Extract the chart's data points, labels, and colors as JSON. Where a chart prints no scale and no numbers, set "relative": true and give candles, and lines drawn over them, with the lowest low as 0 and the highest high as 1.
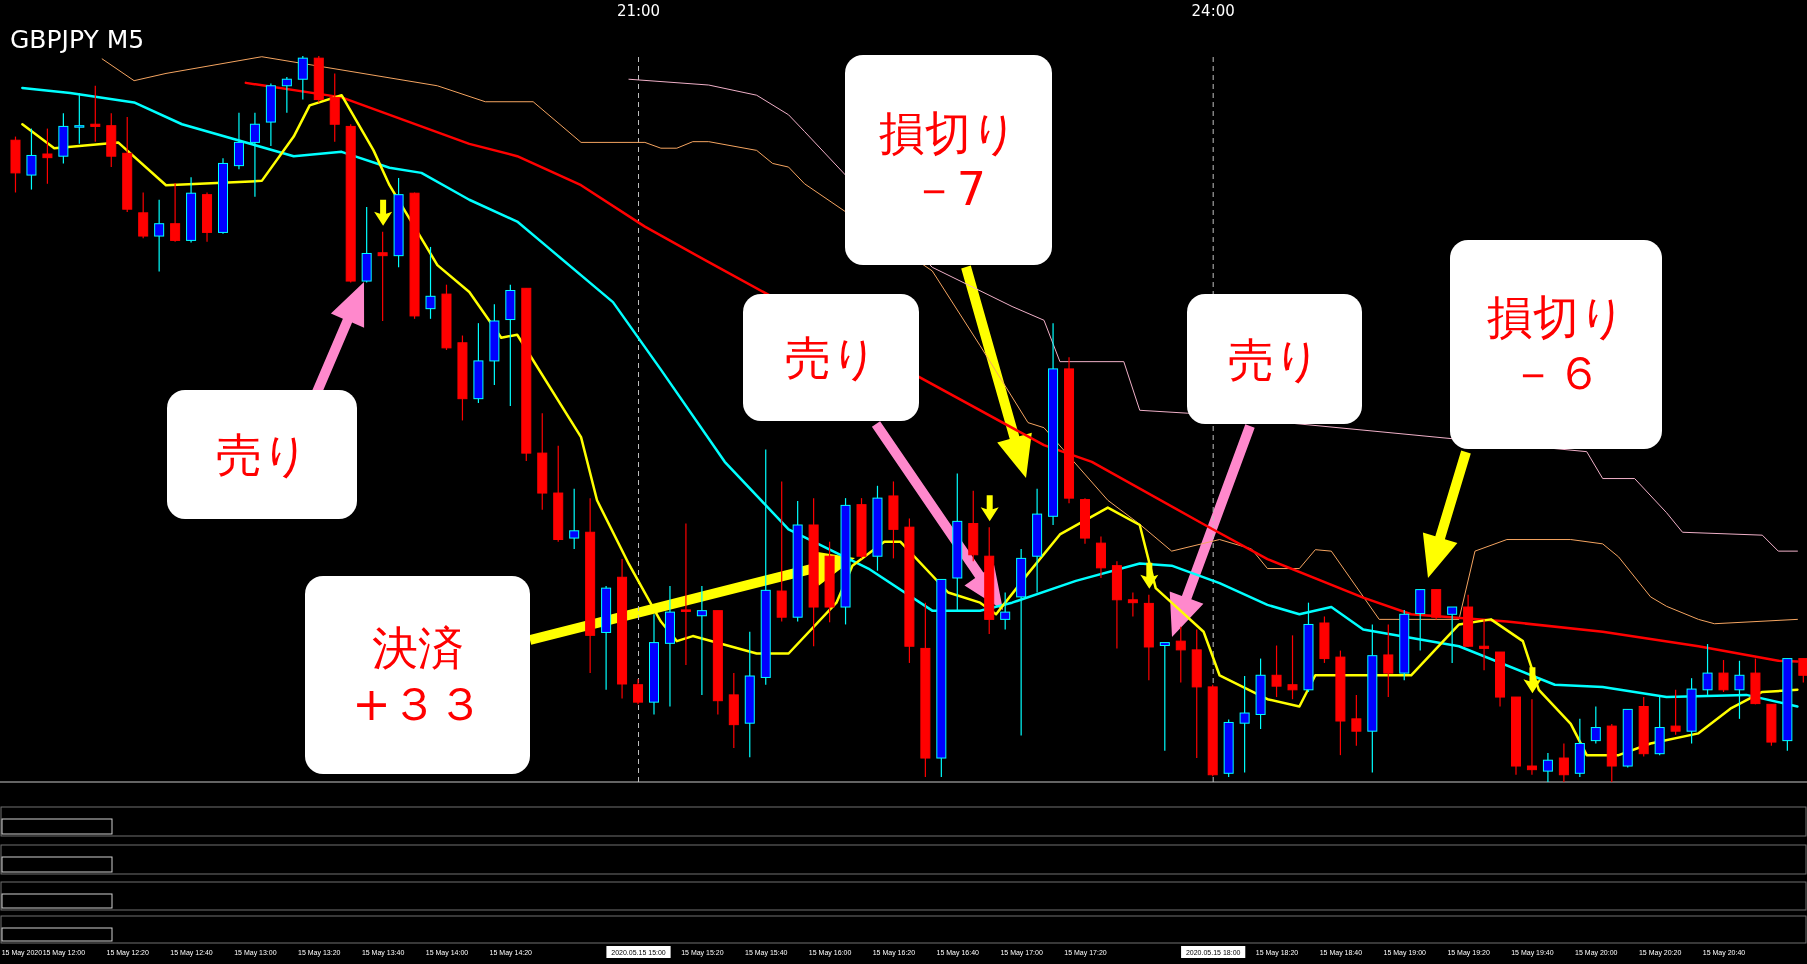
{
  "chart_data": {
    "type": "candlestick",
    "title": "GBPJPY M5",
    "relative": true,
    "marker": "none",
    "x": [
      "2020-05-15T11:45",
      "2020-05-15T11:50",
      "2020-05-15T11:55",
      "2020-05-15T12:00",
      "2020-05-15T12:05",
      "2020-05-15T12:10",
      "2020-05-15T12:15",
      "2020-05-15T12:20",
      "2020-05-15T12:25",
      "2020-05-15T12:30",
      "2020-05-15T12:35",
      "2020-05-15T12:40",
      "2020-05-15T12:45",
      "2020-05-15T12:50",
      "2020-05-15T12:55",
      "2020-05-15T13:00",
      "2020-05-15T13:05",
      "2020-05-15T13:10",
      "2020-05-15T13:15",
      "2020-05-15T13:20",
      "2020-05-15T13:25",
      "2020-05-15T13:30",
      "2020-05-15T13:35",
      "2020-05-15T13:40",
      "2020-05-15T13:45",
      "2020-05-15T13:50",
      "2020-05-15T13:55",
      "2020-05-15T14:00",
      "2020-05-15T14:05",
      "2020-05-15T14:10",
      "2020-05-15T14:15",
      "2020-05-15T14:20",
      "2020-05-15T14:25",
      "2020-05-15T14:30",
      "2020-05-15T14:35",
      "2020-05-15T14:40",
      "2020-05-15T14:45",
      "2020-05-15T14:50",
      "2020-05-15T14:55",
      "2020-05-15T15:00",
      "2020-05-15T15:05",
      "2020-05-15T15:10",
      "2020-05-15T15:15",
      "2020-05-15T15:20",
      "2020-05-15T15:25",
      "2020-05-15T15:30",
      "2020-05-15T15:35",
      "2020-05-15T15:40",
      "2020-05-15T15:45",
      "2020-05-15T15:50",
      "2020-05-15T15:55",
      "2020-05-15T16:00",
      "2020-05-15T16:05",
      "2020-05-15T16:10",
      "2020-05-15T16:15",
      "2020-05-15T16:20",
      "2020-05-15T16:25",
      "2020-05-15T16:30",
      "2020-05-15T16:35",
      "2020-05-15T16:40",
      "2020-05-15T16:45",
      "2020-05-15T16:50",
      "2020-05-15T16:55",
      "2020-05-15T17:00",
      "2020-05-15T17:05",
      "2020-05-15T17:10",
      "2020-05-15T17:15",
      "2020-05-15T17:20",
      "2020-05-15T17:25",
      "2020-05-15T17:30",
      "2020-05-15T17:35",
      "2020-05-15T17:40",
      "2020-05-15T17:45",
      "2020-05-15T17:50",
      "2020-05-15T17:55",
      "2020-05-15T18:00",
      "2020-05-15T18:05",
      "2020-05-15T18:10",
      "2020-05-15T18:15",
      "2020-05-15T18:20",
      "2020-05-15T18:25",
      "2020-05-15T18:30",
      "2020-05-15T18:35",
      "2020-05-15T18:40",
      "2020-05-15T18:45",
      "2020-05-15T18:50",
      "2020-05-15T18:55",
      "2020-05-15T19:00",
      "2020-05-15T19:05",
      "2020-05-15T19:10",
      "2020-05-15T19:15",
      "2020-05-15T19:20",
      "2020-05-15T19:25",
      "2020-05-15T19:30",
      "2020-05-15T19:35",
      "2020-05-15T19:40",
      "2020-05-15T19:45",
      "2020-05-15T19:50",
      "2020-05-15T19:55",
      "2020-05-15T20:00",
      "2020-05-15T20:05",
      "2020-05-15T20:10",
      "2020-05-15T20:15",
      "2020-05-15T20:20",
      "2020-05-15T20:25",
      "2020-05-15T20:30",
      "2020-05-15T20:35",
      "2020-05-15T20:40",
      "2020-05-15T20:45",
      "2020-05-15T20:50",
      "2020-05-15T20:55",
      "2020-05-15T21:00",
      "2020-05-15T21:05"
    ],
    "ohlc": [
      [
        0.884,
        0.889,
        0.812,
        0.839
      ],
      [
        0.836,
        0.9,
        0.816,
        0.863
      ],
      [
        0.865,
        0.9,
        0.824,
        0.86
      ],
      [
        0.862,
        0.921,
        0.852,
        0.903
      ],
      [
        0.904,
        0.949,
        0.879,
        0.904
      ],
      [
        0.906,
        0.959,
        0.882,
        0.903
      ],
      [
        0.904,
        0.921,
        0.847,
        0.862
      ],
      [
        0.866,
        0.916,
        0.785,
        0.789
      ],
      [
        0.784,
        0.812,
        0.749,
        0.752
      ],
      [
        0.752,
        0.802,
        0.703,
        0.769
      ],
      [
        0.769,
        0.825,
        0.744,
        0.746
      ],
      [
        0.746,
        0.833,
        0.743,
        0.811
      ],
      [
        0.809,
        0.812,
        0.744,
        0.757
      ],
      [
        0.757,
        0.859,
        0.755,
        0.852
      ],
      [
        0.849,
        0.922,
        0.844,
        0.881
      ],
      [
        0.881,
        0.922,
        0.806,
        0.906
      ],
      [
        0.909,
        0.962,
        0.876,
        0.959
      ],
      [
        0.959,
        0.971,
        0.922,
        0.968
      ],
      [
        0.968,
        1,
        0.94,
        0.997
      ],
      [
        0.997,
        1,
        0.936,
        0.94
      ],
      [
        0.943,
        0.976,
        0.882,
        0.906
      ],
      [
        0.903,
        0.906,
        0.688,
        0.69
      ],
      [
        0.69,
        0.792,
        0.688,
        0.728
      ],
      [
        0.729,
        0.758,
        0.635,
        0.725
      ],
      [
        0.725,
        0.832,
        0.709,
        0.809
      ],
      [
        0.811,
        0.812,
        0.638,
        0.642
      ],
      [
        0.652,
        0.737,
        0.638,
        0.669
      ],
      [
        0.672,
        0.685,
        0.595,
        0.598
      ],
      [
        0.605,
        0.615,
        0.498,
        0.528
      ],
      [
        0.528,
        0.632,
        0.522,
        0.58
      ],
      [
        0.58,
        0.658,
        0.547,
        0.635
      ],
      [
        0.637,
        0.685,
        0.518,
        0.677
      ],
      [
        0.68,
        0.68,
        0.442,
        0.453
      ],
      [
        0.453,
        0.508,
        0.375,
        0.398
      ],
      [
        0.398,
        0.463,
        0.331,
        0.334
      ],
      [
        0.336,
        0.404,
        0.321,
        0.346
      ],
      [
        0.344,
        0.391,
        0.15,
        0.202
      ],
      [
        0.206,
        0.27,
        0.127,
        0.267
      ],
      [
        0.282,
        0.307,
        0.115,
        0.135
      ],
      [
        0.134,
        0.142,
        0.107,
        0.11
      ],
      [
        0.11,
        0.231,
        0.093,
        0.192
      ],
      [
        0.191,
        0.27,
        0.104,
        0.234
      ],
      [
        0.237,
        0.356,
        0.161,
        0.236
      ],
      [
        0.229,
        0.27,
        0.12,
        0.236
      ],
      [
        0.236,
        0.236,
        0.093,
        0.112
      ],
      [
        0.12,
        0.15,
        0.047,
        0.079
      ],
      [
        0.081,
        0.207,
        0.034,
        0.146
      ],
      [
        0.144,
        0.458,
        0.134,
        0.264
      ],
      [
        0.263,
        0.414,
        0.221,
        0.227
      ],
      [
        0.227,
        0.387,
        0.221,
        0.354
      ],
      [
        0.354,
        0.391,
        0.187,
        0.241
      ],
      [
        0.311,
        0.331,
        0.22,
        0.241
      ],
      [
        0.241,
        0.391,
        0.217,
        0.381
      ],
      [
        0.382,
        0.391,
        0.308,
        0.311
      ],
      [
        0.311,
        0.408,
        0.291,
        0.391
      ],
      [
        0.394,
        0.414,
        0.308,
        0.348
      ],
      [
        0.351,
        0.363,
        0.164,
        0.187
      ],
      [
        0.184,
        0.247,
        0.007,
        0.033
      ],
      [
        0.033,
        0.279,
        0.007,
        0.279
      ],
      [
        0.281,
        0.425,
        0.234,
        0.359
      ],
      [
        0.356,
        0.401,
        0.304,
        0.313
      ],
      [
        0.311,
        0.351,
        0.204,
        0.224
      ],
      [
        0.224,
        0.261,
        0.21,
        0.234
      ],
      [
        0.255,
        0.321,
        0.064,
        0.308
      ],
      [
        0.311,
        0.404,
        0.261,
        0.369
      ],
      [
        0.366,
        0.632,
        0.354,
        0.569
      ],
      [
        0.569,
        0.585,
        0.384,
        0.391
      ],
      [
        0.389,
        0.391,
        0.328,
        0.336
      ],
      [
        0.329,
        0.338,
        0.281,
        0.295
      ],
      [
        0.298,
        0.304,
        0.184,
        0.251
      ],
      [
        0.251,
        0.261,
        0.228,
        0.247
      ],
      [
        0.246,
        0.258,
        0.14,
        0.186
      ],
      [
        0.188,
        0.192,
        0.043,
        0.192
      ],
      [
        0.194,
        0.214,
        0.137,
        0.182
      ],
      [
        0.182,
        0.21,
        0.033,
        0.131
      ],
      [
        0.131,
        0.134,
        0.008,
        0.01
      ],
      [
        0.012,
        0.086,
        0.007,
        0.082
      ],
      [
        0.081,
        0.146,
        0.013,
        0.095
      ],
      [
        0.093,
        0.17,
        0.073,
        0.147
      ],
      [
        0.147,
        0.188,
        0.117,
        0.132
      ],
      [
        0.134,
        0.202,
        0.114,
        0.127
      ],
      [
        0.127,
        0.247,
        0.124,
        0.217
      ],
      [
        0.219,
        0.228,
        0.164,
        0.17
      ],
      [
        0.172,
        0.181,
        0.037,
        0.084
      ],
      [
        0.087,
        0.12,
        0.05,
        0.07
      ],
      [
        0.07,
        0.217,
        0.013,
        0.174
      ],
      [
        0.175,
        0.217,
        0.117,
        0.15
      ],
      [
        0.15,
        0.237,
        0.14,
        0.231
      ],
      [
        0.232,
        0.265,
        0.181,
        0.265
      ],
      [
        0.265,
        0.265,
        0.224,
        0.227
      ],
      [
        0.231,
        0.241,
        0.164,
        0.241
      ],
      [
        0.241,
        0.258,
        0.186,
        0.187
      ],
      [
        0.187,
        0.224,
        0.154,
        0.184
      ],
      [
        0.179,
        0.179,
        0.104,
        0.117
      ],
      [
        0.117,
        0.117,
        0.01,
        0.022
      ],
      [
        0.022,
        0.114,
        0.01,
        0.017
      ],
      [
        0.015,
        0.04,
        0,
        0.03
      ],
      [
        0.033,
        0.053,
        0,
        0.01
      ],
      [
        0.012,
        0.087,
        0.007,
        0.053
      ],
      [
        0.057,
        0.104,
        0.053,
        0.075
      ],
      [
        0.077,
        0.08,
        0,
        0.022
      ],
      [
        0.022,
        0.1,
        0.02,
        0.1
      ],
      [
        0.104,
        0.117,
        0.035,
        0.039
      ],
      [
        0.039,
        0.117,
        0.037,
        0.075
      ],
      [
        0.077,
        0.127,
        0.065,
        0.07
      ],
      [
        0.07,
        0.143,
        0.053,
        0.128
      ],
      [
        0.127,
        0.19,
        0.12,
        0.15
      ],
      [
        0.15,
        0.168,
        0.124,
        0.127
      ],
      [
        0.127,
        0.167,
        0.087,
        0.147
      ],
      [
        0.15,
        0.17,
        0.107,
        0.108
      ],
      [
        0.107,
        0.107,
        0.05,
        0.055
      ],
      [
        0.057,
        0.17,
        0.043,
        0.17
      ],
      [
        0.17,
        0.17,
        0.137,
        0.147
      ]
    ],
    "colors": [
      "#ff0000",
      "#0000ff",
      "#ff0000",
      "#0000ff",
      "#0000ff",
      "#ff0000",
      "#ff0000",
      "#ff0000",
      "#ff0000",
      "#0000ff",
      "#ff0000",
      "#0000ff",
      "#ff0000",
      "#0000ff",
      "#0000ff",
      "#0000ff",
      "#0000ff",
      "#0000ff",
      "#0000ff",
      "#ff0000",
      "#ff0000",
      "#ff0000",
      "#0000ff",
      "#ff0000",
      "#0000ff",
      "#ff0000",
      "#0000ff",
      "#ff0000",
      "#ff0000",
      "#0000ff",
      "#0000ff",
      "#0000ff",
      "#ff0000",
      "#ff0000",
      "#ff0000",
      "#0000ff",
      "#ff0000",
      "#0000ff",
      "#ff0000",
      "#ff0000",
      "#0000ff",
      "#0000ff",
      "#ff0000",
      "#0000ff",
      "#ff0000",
      "#ff0000",
      "#0000ff",
      "#0000ff",
      "#ff0000",
      "#0000ff",
      "#ff0000",
      "#ff0000",
      "#0000ff",
      "#ff0000",
      "#0000ff",
      "#ff0000",
      "#ff0000",
      "#ff0000",
      "#0000ff",
      "#0000ff",
      "#ff0000",
      "#ff0000",
      "#0000ff",
      "#0000ff",
      "#0000ff",
      "#0000ff",
      "#ff0000",
      "#ff0000",
      "#ff0000",
      "#ff0000",
      "#ff0000",
      "#ff0000",
      "#0000ff",
      "#ff0000",
      "#ff0000",
      "#ff0000",
      "#0000ff",
      "#0000ff",
      "#0000ff",
      "#ff0000",
      "#ff0000",
      "#0000ff",
      "#ff0000",
      "#ff0000",
      "#ff0000",
      "#0000ff",
      "#ff0000",
      "#0000ff",
      "#0000ff",
      "#ff0000",
      "#0000ff",
      "#ff0000",
      "#ff0000",
      "#ff0000",
      "#ff0000",
      "#ff0000",
      "#0000ff",
      "#ff0000",
      "#0000ff",
      "#0000ff",
      "#ff0000",
      "#0000ff",
      "#ff0000",
      "#0000ff",
      "#ff0000",
      "#0000ff",
      "#0000ff",
      "#ff0000",
      "#0000ff",
      "#ff0000",
      "#ff0000",
      "#0000ff",
      "#ff0000"
    ],
    "series": [
      {
        "type": "line",
        "color": "#f0b0c8",
        "x": [
          "2020-05-15T14:57",
          "2020-05-15T15:22",
          "2020-05-15T15:37",
          "2020-05-15T15:47",
          "2020-05-15T15:52",
          "2020-05-15T16:32",
          "2020-05-15T16:57",
          "2020-05-15T17:07",
          "2020-05-15T17:12",
          "2020-05-15T17:32",
          "2020-05-15T17:37",
          "2020-05-15T17:52",
          "2020-05-15T19:57",
          "2020-05-15T20:02",
          "2020-05-15T20:12",
          "2020-05-15T20:22",
          "2020-05-15T20:27",
          "2020-05-15T20:52",
          "2020-05-15T20:57",
          "2020-05-15T21:03"
        ],
        "values": [
          0.968,
          0.96,
          0.946,
          0.919,
          0.896,
          0.709,
          0.655,
          0.636,
          0.579,
          0.579,
          0.512,
          0.508,
          0.455,
          0.418,
          0.418,
          0.371,
          0.344,
          0.34,
          0.318,
          0.318
        ]
      },
      {
        "type": "line",
        "color": "#f4a460",
        "x": [
          "2020-05-15T12:12",
          "2020-05-15T12:22",
          "2020-05-15T12:32",
          "2020-05-15T13:02",
          "2020-05-15T13:57",
          "2020-05-15T14:12",
          "2020-05-15T14:27",
          "2020-05-15T14:42",
          "2020-05-15T15:02",
          "2020-05-15T15:07",
          "2020-05-15T15:12",
          "2020-05-15T15:17",
          "2020-05-15T15:22",
          "2020-05-15T15:37",
          "2020-05-15T15:42",
          "2020-05-15T15:47",
          "2020-05-15T15:52",
          "2020-05-15T16:32",
          "2020-05-15T16:47",
          "2020-05-15T17:02",
          "2020-05-15T17:07",
          "2020-05-15T17:27",
          "2020-05-15T17:37",
          "2020-05-15T17:47",
          "2020-05-15T18:02",
          "2020-05-15T18:12",
          "2020-05-15T18:17",
          "2020-05-15T18:27",
          "2020-05-15T18:32",
          "2020-05-15T18:37",
          "2020-05-15T18:52",
          "2020-05-15T19:17",
          "2020-05-15T19:22",
          "2020-05-15T19:32",
          "2020-05-15T19:52",
          "2020-05-15T20:02",
          "2020-05-15T20:07",
          "2020-05-15T20:17",
          "2020-05-15T20:22",
          "2020-05-15T20:32",
          "2020-05-15T20:37",
          "2020-05-15T21:03"
        ],
        "values": [
          0.996,
          0.966,
          0.976,
          0.999,
          0.959,
          0.937,
          0.937,
          0.881,
          0.881,
          0.873,
          0.873,
          0.882,
          0.882,
          0.87,
          0.852,
          0.847,
          0.824,
          0.704,
          0.601,
          0.495,
          0.488,
          0.388,
          0.355,
          0.318,
          0.334,
          0.321,
          0.294,
          0.294,
          0.32,
          0.318,
          0.224,
          0.224,
          0.318,
          0.334,
          0.334,
          0.328,
          0.31,
          0.255,
          0.242,
          0.224,
          0.218,
          0.224
        ]
      },
      {
        "type": "line",
        "color": "#ff0000",
        "x": [
          "2020-05-15T12:57",
          "2020-05-15T13:27",
          "2020-05-15T14:07",
          "2020-05-15T14:22",
          "2020-05-15T14:42",
          "2020-05-15T15:02",
          "2020-05-15T15:22",
          "2020-05-15T17:07",
          "2020-05-15T17:22",
          "2020-05-15T17:57",
          "2020-05-15T18:17",
          "2020-05-15T18:47",
          "2020-05-15T19:02",
          "2020-05-15T19:32",
          "2020-05-15T20:02",
          "2020-05-15T20:32",
          "2020-05-15T20:57",
          "2020-05-15T21:03"
        ],
        "values": [
          0.963,
          0.943,
          0.879,
          0.862,
          0.822,
          0.765,
          0.716,
          0.464,
          0.441,
          0.355,
          0.307,
          0.254,
          0.231,
          0.221,
          0.207,
          0.187,
          0.167,
          0.166
        ]
      },
      {
        "type": "line",
        "color": "#00ffff",
        "x": [
          "2020-05-15T11:47",
          "2020-05-15T12:02",
          "2020-05-15T12:22",
          "2020-05-15T12:37",
          "2020-05-15T13:12",
          "2020-05-15T13:27",
          "2020-05-15T13:42",
          "2020-05-15T13:52",
          "2020-05-15T14:07",
          "2020-05-15T14:22",
          "2020-05-15T14:32",
          "2020-05-15T14:52",
          "2020-05-15T15:07",
          "2020-05-15T15:27",
          "2020-05-15T15:47",
          "2020-05-15T16:12",
          "2020-05-15T16:32",
          "2020-05-15T16:47",
          "2020-05-15T16:57",
          "2020-05-15T17:17",
          "2020-05-15T17:37",
          "2020-05-15T17:47",
          "2020-05-15T18:02",
          "2020-05-15T18:17",
          "2020-05-15T18:27",
          "2020-05-15T18:37",
          "2020-05-15T18:47",
          "2020-05-15T19:17",
          "2020-05-15T19:47",
          "2020-05-15T20:02",
          "2020-05-15T20:22",
          "2020-05-15T20:47",
          "2020-05-15T21:03"
        ],
        "values": [
          0.956,
          0.949,
          0.936,
          0.906,
          0.862,
          0.868,
          0.846,
          0.839,
          0.802,
          0.772,
          0.735,
          0.661,
          0.568,
          0.441,
          0.348,
          0.294,
          0.236,
          0.236,
          0.247,
          0.277,
          0.301,
          0.298,
          0.274,
          0.244,
          0.231,
          0.241,
          0.21,
          0.187,
          0.134,
          0.131,
          0.117,
          0.12,
          0.104
        ]
      },
      {
        "type": "line",
        "color": "#ffff00",
        "x": [
          "2020-05-15T11:47",
          "2020-05-15T11:57",
          "2020-05-15T12:17",
          "2020-05-15T12:32",
          "2020-05-15T13:02",
          "2020-05-15T13:12",
          "2020-05-15T13:17",
          "2020-05-15T13:27",
          "2020-05-15T13:37",
          "2020-05-15T13:42",
          "2020-05-15T13:57",
          "2020-05-15T14:07",
          "2020-05-15T14:17",
          "2020-05-15T14:22",
          "2020-05-15T14:42",
          "2020-05-15T14:47",
          "2020-05-15T14:57",
          "2020-05-15T15:07",
          "2020-05-15T15:12",
          "2020-05-15T15:17",
          "2020-05-15T15:37",
          "2020-05-15T15:47",
          "2020-05-15T16:02",
          "2020-05-15T16:07",
          "2020-05-15T16:17",
          "2020-05-15T16:22",
          "2020-05-15T16:37",
          "2020-05-15T16:47",
          "2020-05-15T16:52",
          "2020-05-15T17:02",
          "2020-05-15T17:12",
          "2020-05-15T17:27",
          "2020-05-15T17:37",
          "2020-05-15T17:42",
          "2020-05-15T17:57",
          "2020-05-15T18:02",
          "2020-05-15T18:17",
          "2020-05-15T18:27",
          "2020-05-15T18:32",
          "2020-05-15T18:47",
          "2020-05-15T19:02",
          "2020-05-15T19:17",
          "2020-05-15T19:27",
          "2020-05-15T19:37",
          "2020-05-15T19:42",
          "2020-05-15T19:52",
          "2020-05-15T19:57",
          "2020-05-15T20:07",
          "2020-05-15T20:17",
          "2020-05-15T20:32",
          "2020-05-15T20:42",
          "2020-05-15T20:52",
          "2020-05-15T21:03"
        ],
        "values": [
          0.906,
          0.873,
          0.881,
          0.822,
          0.828,
          0.889,
          0.932,
          0.946,
          0.87,
          0.822,
          0.712,
          0.675,
          0.612,
          0.616,
          0.475,
          0.388,
          0.3,
          0.221,
          0.194,
          0.201,
          0.177,
          0.177,
          0.247,
          0.298,
          0.331,
          0.331,
          0.261,
          0.247,
          0.231,
          0.287,
          0.341,
          0.378,
          0.354,
          0.267,
          0.207,
          0.147,
          0.114,
          0.104,
          0.147,
          0.147,
          0.147,
          0.217,
          0.224,
          0.194,
          0.127,
          0.08,
          0.037,
          0.037,
          0.053,
          0.067,
          0.101,
          0.124,
          0.127
        ]
      }
    ],
    "xlim": [
      "2020-05-15T11:40",
      "2020-05-15T21:06"
    ],
    "xticks": [
      {
        "value": "2020-05-15T11:40",
        "label": "15 May 2020"
      },
      {
        "value": "2020-05-15T12:00",
        "label": "15 May 12:00"
      },
      {
        "value": "2020-05-15T12:20",
        "label": "15 May 12:20"
      },
      {
        "value": "2020-05-15T12:40",
        "label": "15 May 12:40"
      },
      {
        "value": "2020-05-15T13:00",
        "label": "15 May 13:00"
      },
      {
        "value": "2020-05-15T13:20",
        "label": "15 May 13:20"
      },
      {
        "value": "2020-05-15T13:40",
        "label": "15 May 13:40"
      },
      {
        "value": "2020-05-15T14:00",
        "label": "15 May 14:00"
      },
      {
        "value": "2020-05-15T14:20",
        "label": "15 May 14:20"
      },
      {
        "value": "2020-05-15T15:00",
        "label": "2020.05.15 15:00"
      },
      {
        "value": "2020-05-15T15:20",
        "label": "15 May 15:20"
      },
      {
        "value": "2020-05-15T15:40",
        "label": "15 May 15:40"
      },
      {
        "value": "2020-05-15T16:00",
        "label": "15 May 16:00"
      },
      {
        "value": "2020-05-15T16:20",
        "label": "15 May 16:20"
      },
      {
        "value": "2020-05-15T16:40",
        "label": "15 May 16:40"
      },
      {
        "value": "2020-05-15T17:00",
        "label": "15 May 17:00"
      },
      {
        "value": "2020-05-15T17:20",
        "label": "15 May 17:20"
      },
      {
        "value": "2020-05-15T18:00",
        "label": "2020.05.15 18:00"
      },
      {
        "value": "2020-05-15T18:20",
        "label": "15 May 18:20"
      },
      {
        "value": "2020-05-15T18:40",
        "label": "15 May 18:40"
      },
      {
        "value": "2020-05-15T19:00",
        "label": "15 May 19:00"
      },
      {
        "value": "2020-05-15T19:20",
        "label": "15 May 19:20"
      },
      {
        "value": "2020-05-15T19:40",
        "label": "15 May 19:40"
      },
      {
        "value": "2020-05-15T20:00",
        "label": "15 May 20:00"
      },
      {
        "value": "2020-05-15T20:20",
        "label": "15 May 20:20"
      },
      {
        "value": "2020-05-15T20:40",
        "label": "15 May 20:40"
      }
    ],
    "ref_lines": [
      {
        "axis": "x",
        "value": "2020-05-15T15:00",
        "label": "21:00",
        "color": "#c0c0c0",
        "line_style": "dashed"
      },
      {
        "axis": "x",
        "value": "2020-05-15T18:00",
        "label": "24:00",
        "color": "#c0c0c0",
        "line_style": "dashed"
      }
    ],
    "annotations": [
      "売り",
      "決済\n+３３",
      "売り",
      "損切り－7",
      "売り",
      "損切り－６"
    ]
  }
}
